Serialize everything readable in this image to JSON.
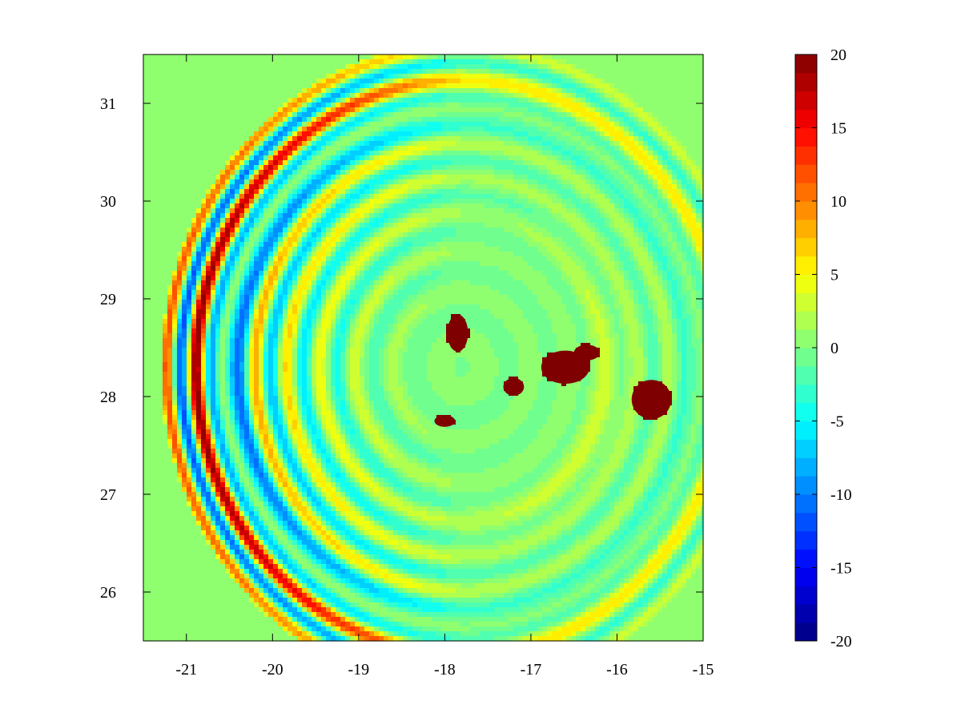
{
  "chart_data": {
    "type": "heatmap",
    "title": "",
    "xlabel": "",
    "ylabel": "",
    "xlim": [
      -21.5,
      -15
    ],
    "ylim": [
      25.5,
      31.5
    ],
    "x_ticks": [
      -21,
      -20,
      -19,
      -18,
      -17,
      -16,
      -15
    ],
    "y_ticks": [
      26,
      27,
      28,
      29,
      30,
      31
    ],
    "x_tick_labels": [
      "-21",
      "-20",
      "-19",
      "-18",
      "-17",
      "-16",
      "-15"
    ],
    "y_tick_labels": [
      "26",
      "27",
      "28",
      "29",
      "30",
      "31"
    ],
    "colorbar": {
      "range": [
        -20,
        20
      ],
      "ticks": [
        -20,
        -15,
        -10,
        -5,
        0,
        5,
        10,
        15,
        20
      ],
      "tick_labels": [
        "-20",
        "-15",
        "-10",
        "-5",
        "0",
        "5",
        "10",
        "15",
        "20"
      ],
      "colormap": "jet",
      "levels": 32
    },
    "field": {
      "description_source": "concentric wave pattern radiating from a source near the island west of center",
      "source_center": [
        -17.8,
        28.3
      ],
      "background_value": 0,
      "land_value": 20
    },
    "islands": [
      {
        "center": [
          -17.85,
          28.65
        ],
        "rx": 0.12,
        "ry": 0.19
      },
      {
        "center": [
          -17.2,
          28.1
        ],
        "rx": 0.12,
        "ry": 0.09
      },
      {
        "center": [
          -16.6,
          28.3
        ],
        "rx": 0.28,
        "ry": 0.17
      },
      {
        "center": [
          -16.35,
          28.45
        ],
        "rx": 0.15,
        "ry": 0.08
      },
      {
        "center": [
          -15.6,
          27.97
        ],
        "rx": 0.23,
        "ry": 0.2
      },
      {
        "center": [
          -18.0,
          27.75
        ],
        "rx": 0.12,
        "ry": 0.06
      }
    ],
    "grid": false,
    "legend": "colorbar-right"
  }
}
